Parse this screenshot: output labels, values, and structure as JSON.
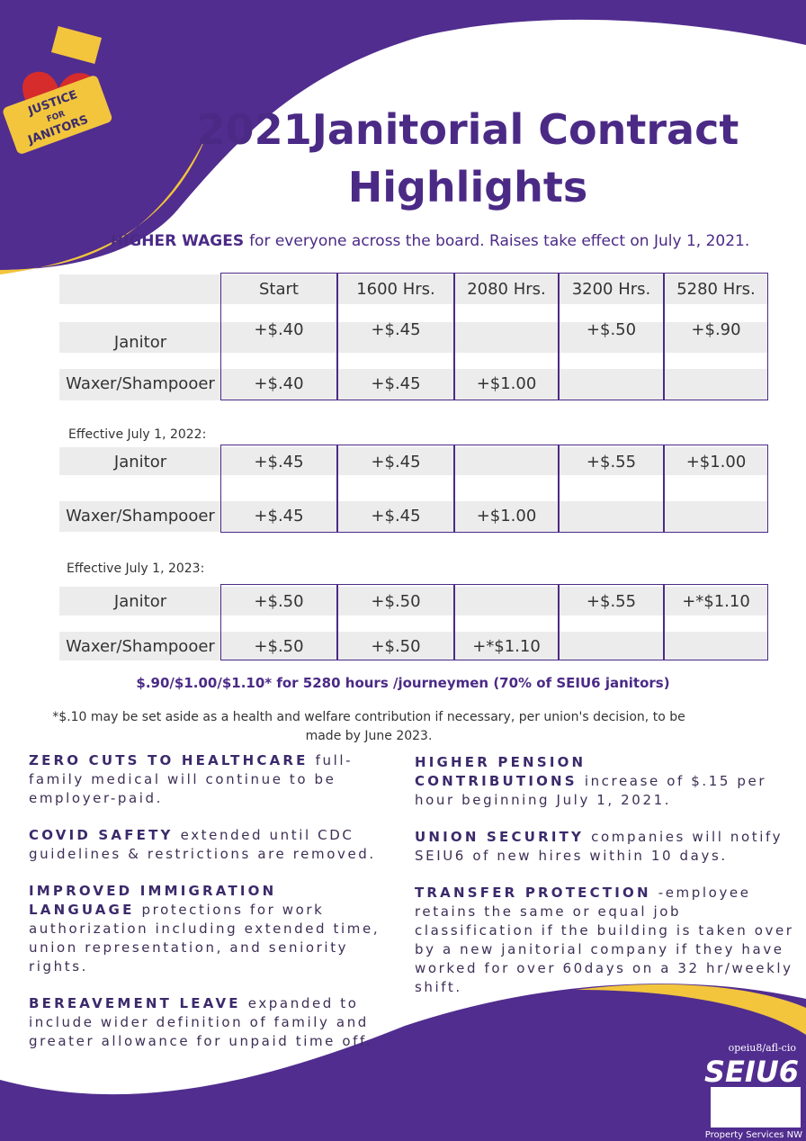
{
  "logo": {
    "words": [
      "JUSTICE",
      "FOR",
      "JANITORS"
    ]
  },
  "title": "2021Janitorial Contract Highlights",
  "intro": {
    "bold": "HIGHER WAGES",
    "text": "for everyone across the board. Raises take effect on July 1, 2021."
  },
  "columns": [
    "Start",
    "1600 Hrs.",
    "2080 Hrs.",
    "3200 Hrs.",
    "5280 Hrs."
  ],
  "tables": [
    {
      "rows": [
        {
          "label": "Janitor",
          "cells": [
            "+$.40",
            "+$.45",
            null,
            "+$.50",
            "+$.90"
          ]
        },
        {
          "label": "Waxer/Shampooer",
          "cells": [
            "+$.40",
            "+$.45",
            "+$1.00",
            null,
            null
          ]
        }
      ]
    },
    {
      "caption": "Effective July 1, 2022:",
      "rows": [
        {
          "label": "Janitor",
          "cells": [
            "+$.45",
            "+$.45",
            null,
            "+$.55",
            "+$1.00"
          ]
        },
        {
          "label": "Waxer/Shampooer",
          "cells": [
            "+$.45",
            "+$.45",
            "+$1.00",
            null,
            null
          ]
        }
      ]
    },
    {
      "caption": "Effective July 1, 2023:",
      "rows": [
        {
          "label": "Janitor",
          "cells": [
            "+$.50",
            "+$.50",
            null,
            "+$.55",
            "+*$1.10"
          ]
        },
        {
          "label": "Waxer/Shampooer",
          "cells": [
            "+$.50",
            "+$.50",
            "+*$1.10",
            null,
            null
          ]
        }
      ]
    }
  ],
  "summary": "$.90/$1.00/$1.10* for 5280 hours /journeymen (70% of SEIU6 janitors)",
  "footnote": "*$.10 may be set aside as a health and welfare contribution if necessary, per union's decision, to be made by June 2023.",
  "benefits": {
    "left": [
      {
        "heading": "ZERO CUTS TO HEALTHCARE",
        "text": "full-family medical will continue to be employer-paid."
      },
      {
        "heading": "COVID SAFETY",
        "text": "extended until CDC guidelines & restrictions are removed."
      },
      {
        "heading": "IMPROVED IMMIGRATION LANGUAGE",
        "text": "protections for work authorization including extended time, union representation, and seniority rights."
      },
      {
        "heading": "BEREAVEMENT LEAVE",
        "text": "expanded to include wider definition of family and greater allowance for unpaid time off."
      }
    ],
    "right": [
      {
        "heading": "HIGHER PENSION CONTRIBUTIONS",
        "text": "increase of $.15 per hour beginning July 1, 2021."
      },
      {
        "heading": "UNION SECURITY",
        "text": "companies will notify SEIU6 of new hires within 10 days."
      },
      {
        "heading": "TRANSFER PROTECTION",
        "text": "-employee retains the same or equal job classification if the building is taken over by a new janitorial company if they have worked for over 60days on a 32 hr/weekly shift."
      }
    ]
  },
  "footer_logo": {
    "affiliation": "opeiu8/afl-cio",
    "name": "SEIU6",
    "division": "Property Services NW"
  }
}
